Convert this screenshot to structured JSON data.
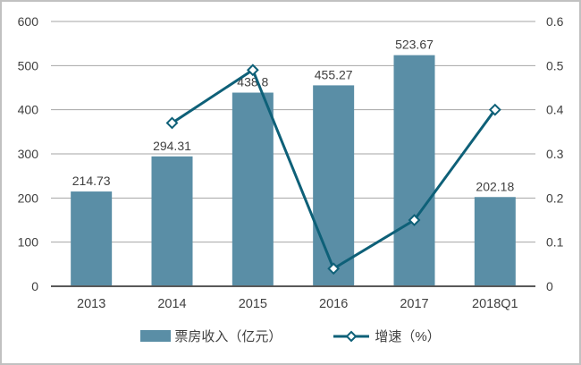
{
  "chart_data": {
    "type": "bar+line",
    "title": "",
    "categories": [
      "2013",
      "2014",
      "2015",
      "2016",
      "2017",
      "2018Q1"
    ],
    "series": [
      {
        "name": "票房收入（亿元）",
        "type": "bar",
        "axis": "left",
        "values": [
          214.73,
          294.31,
          438.8,
          455.27,
          523.67,
          202.18
        ],
        "labels": [
          "214.73",
          "294.31",
          "438.8",
          "455.27",
          "523.67",
          "202.18"
        ],
        "color": "#5A8EA6"
      },
      {
        "name": "增速（%）",
        "type": "line",
        "axis": "right",
        "marker": "diamond",
        "values": [
          null,
          0.37,
          0.49,
          0.04,
          0.15,
          0.4
        ],
        "color": "#0E6078"
      }
    ],
    "left_axis": {
      "min": 0,
      "max": 600,
      "step": 100,
      "ticks": [
        "0",
        "100",
        "200",
        "300",
        "400",
        "500",
        "600"
      ]
    },
    "right_axis": {
      "min": 0,
      "max": 0.6,
      "step": 0.1,
      "ticks": [
        "0",
        "0.1",
        "0.2",
        "0.3",
        "0.4",
        "0.5",
        "0.6"
      ]
    },
    "grid": true,
    "legend_position": "bottom",
    "colors": {
      "grid": "#A6A6A6",
      "axis_line": "#595959",
      "text": "#404040",
      "background": "#FFFFFF",
      "frame_border": "#C1C1C1",
      "marker_fill": "#FFFFFF"
    }
  }
}
